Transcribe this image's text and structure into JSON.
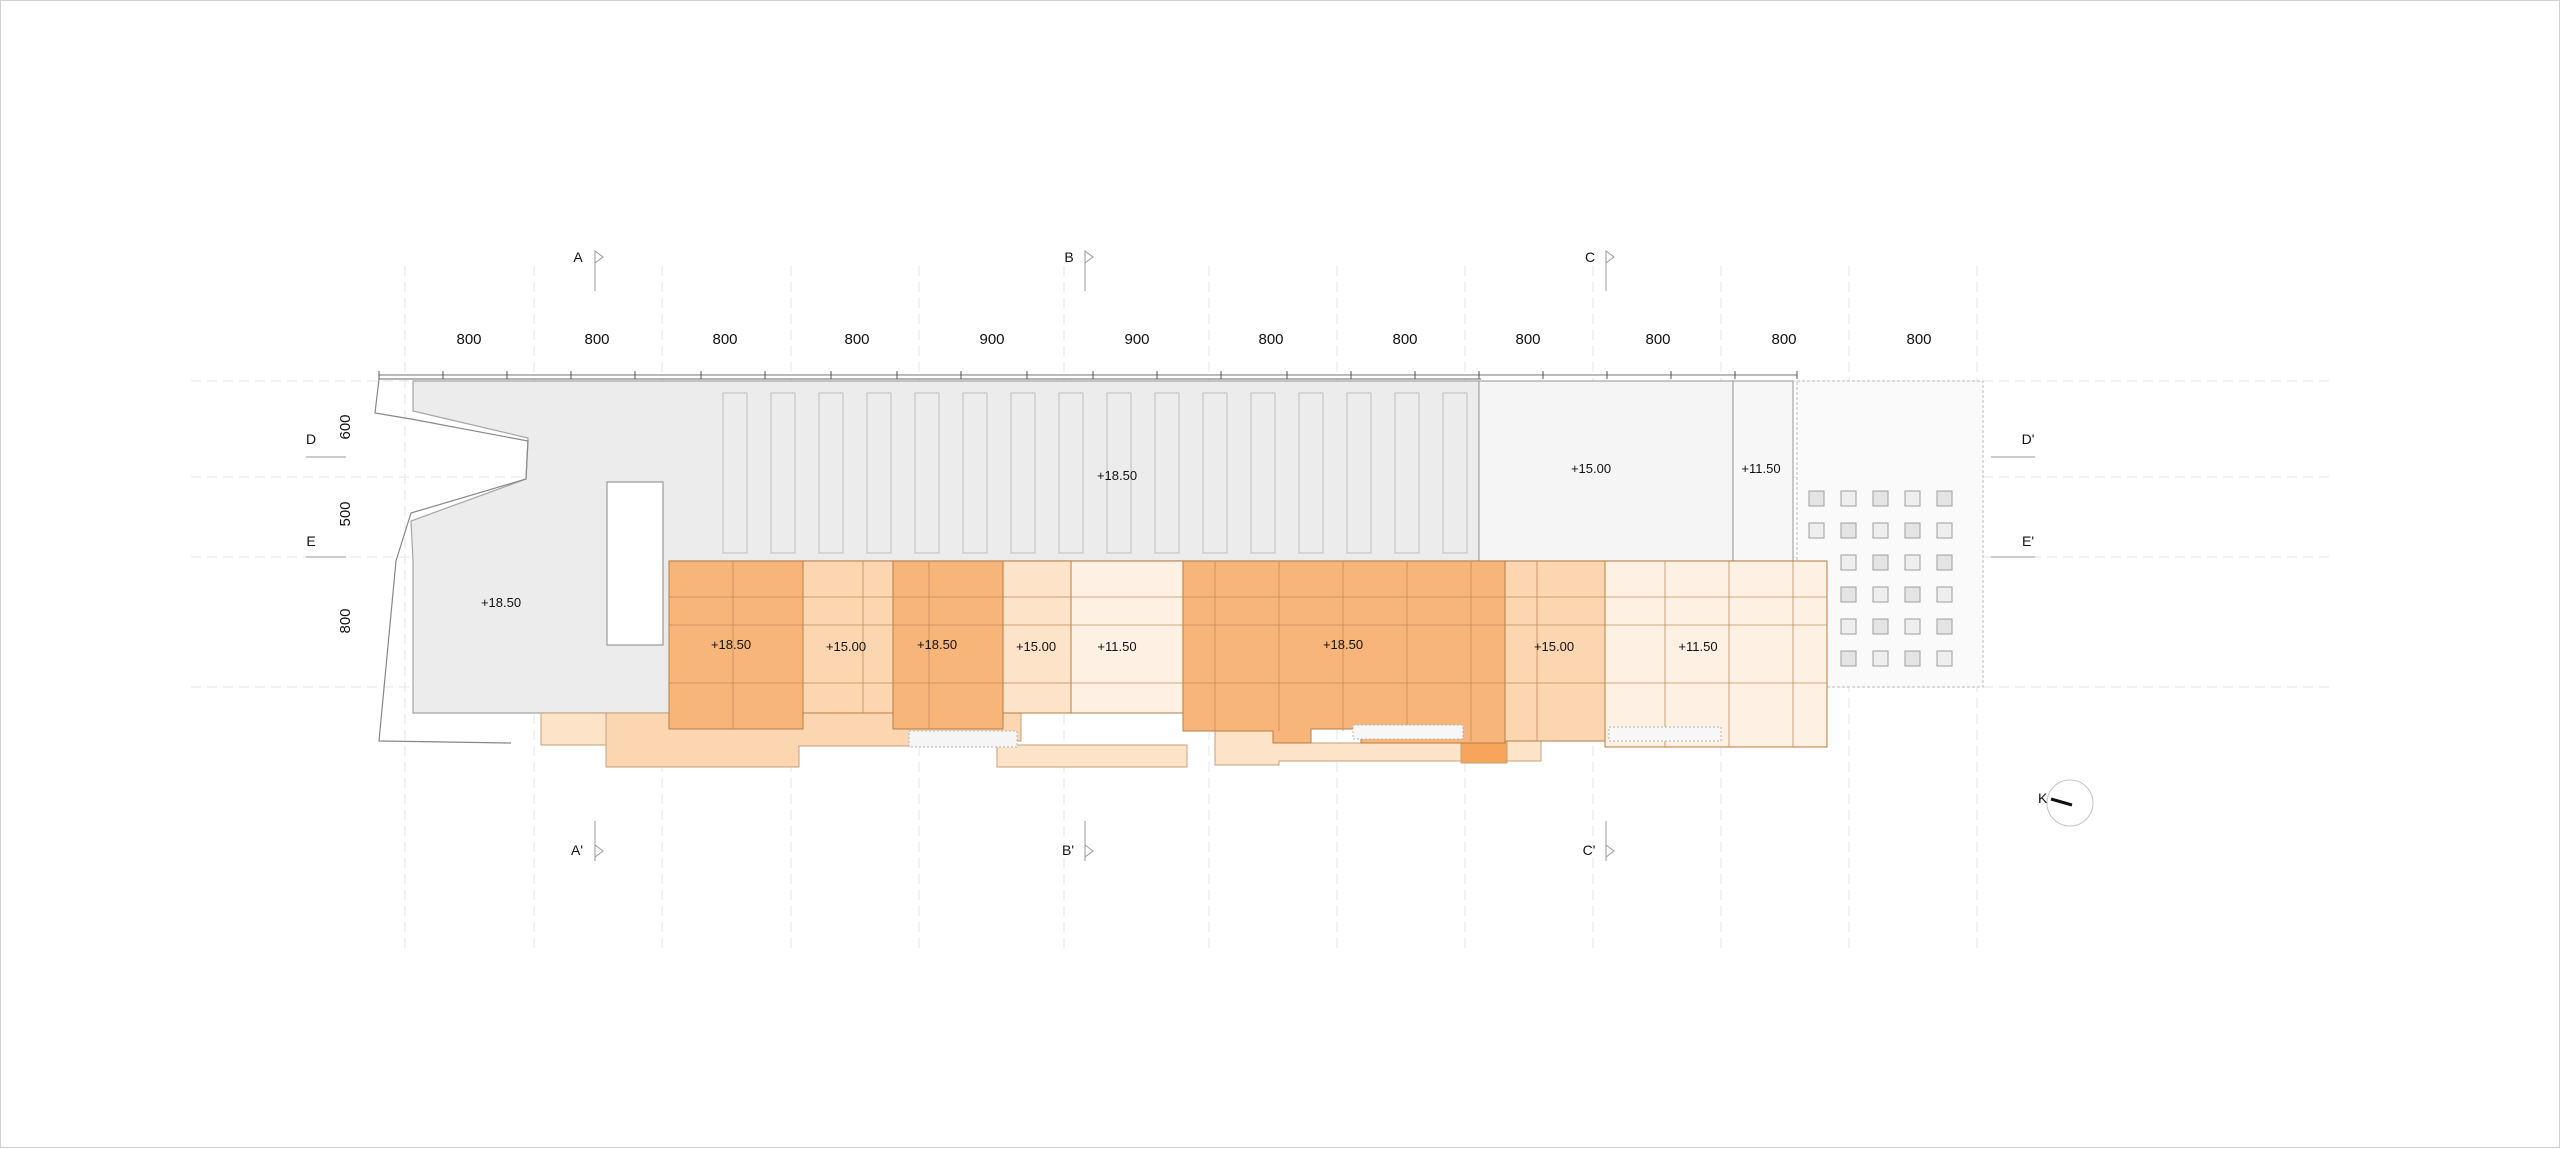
{
  "section_markers": {
    "top": [
      "A",
      "B",
      "C"
    ],
    "bottom": [
      "A'",
      "B'",
      "C'"
    ],
    "left": [
      "D",
      "E"
    ],
    "right": [
      "D'",
      "E'"
    ]
  },
  "dimensions": {
    "horizontal": [
      "800",
      "800",
      "800",
      "800",
      "900",
      "900",
      "800",
      "800",
      "800",
      "800",
      "800",
      "800"
    ],
    "vertical": [
      "600",
      "500",
      "800"
    ]
  },
  "elevations": {
    "roof_main": "+18.50",
    "roof_upper_mid": "+18.50",
    "roof_upper_right": "+15.00",
    "roof_upper_far_right": "+11.50",
    "orange_1": "+18.50",
    "orange_2": "+15.00",
    "orange_3": "+18.50",
    "orange_4": "+15.00",
    "orange_5": "+11.50",
    "orange_6": "+18.50",
    "orange_7": "+15.00",
    "orange_8": "+11.50"
  },
  "north_label": "K",
  "colors": {
    "roof_grey": "#ececec",
    "roof_light": "#f5f5f5",
    "orange_dark": "#f6a55a",
    "orange_mid": "#f9c99a",
    "orange_light": "#fde3c8",
    "orange_pale": "#fef1e3",
    "line": "#999999"
  }
}
